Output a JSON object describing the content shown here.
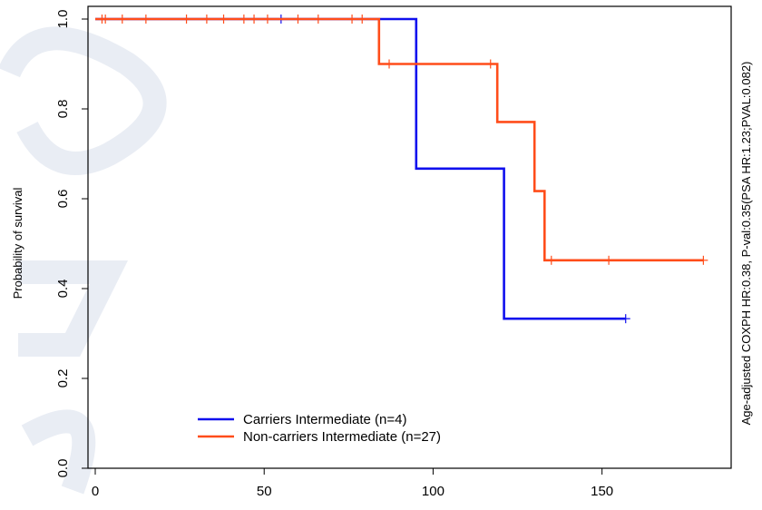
{
  "chart_data": {
    "type": "line",
    "subtype": "kaplan-meier step",
    "title": "",
    "xlabel": "",
    "ylabel": "Probability of survival",
    "side_annotation": "Age-adjusted COXPH HR:0.38, P-val:0.35(PSA HR:1.23;PVAL:0.082)",
    "xlim": [
      0,
      185
    ],
    "ylim": [
      0,
      1
    ],
    "x_ticks": [
      0,
      50,
      100,
      150
    ],
    "y_ticks": [
      0.0,
      0.2,
      0.4,
      0.6,
      0.8,
      1.0
    ],
    "x_tick_labels": [
      "0",
      "50",
      "100",
      "150"
    ],
    "y_tick_labels": [
      "0.0",
      "0.2",
      "0.4",
      "0.6",
      "0.8",
      "1.0"
    ],
    "grid": false,
    "legend_position": "bottom-left",
    "series": [
      {
        "name": "Carriers Intermediate (n=4)",
        "color": "#1010ee",
        "steps": [
          [
            0,
            1.0
          ],
          [
            95,
            1.0
          ],
          [
            95,
            0.667
          ],
          [
            121,
            0.667
          ],
          [
            121,
            0.333
          ],
          [
            157,
            0.333
          ]
        ],
        "censor_x": [
          55,
          157
        ],
        "censor_y": [
          1.0,
          0.333
        ]
      },
      {
        "name": "Non-carriers Intermediate (n=27)",
        "color": "#ff4d1a",
        "steps": [
          [
            0,
            1.0
          ],
          [
            84,
            1.0
          ],
          [
            84,
            0.9
          ],
          [
            119,
            0.9
          ],
          [
            119,
            0.771
          ],
          [
            130,
            0.771
          ],
          [
            130,
            0.617
          ],
          [
            133,
            0.617
          ],
          [
            133,
            0.463
          ],
          [
            180,
            0.463
          ]
        ],
        "censor_x": [
          2,
          3,
          8,
          15,
          27,
          33,
          38,
          44,
          47,
          51,
          60,
          66,
          76,
          79,
          87,
          117,
          135,
          152,
          180
        ],
        "censor_y": [
          1.0,
          1.0,
          1.0,
          1.0,
          1.0,
          1.0,
          1.0,
          1.0,
          1.0,
          1.0,
          1.0,
          1.0,
          1.0,
          1.0,
          0.9,
          0.9,
          0.463,
          0.463,
          0.463
        ]
      }
    ]
  }
}
